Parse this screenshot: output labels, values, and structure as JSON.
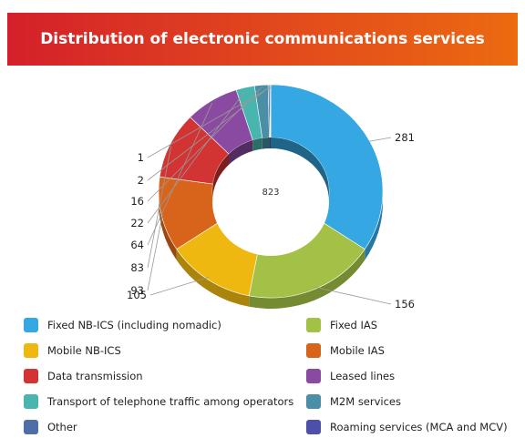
{
  "header": {
    "title": "Distribution of electronic communications services"
  },
  "chart_data": {
    "type": "pie",
    "variant": "donut-3d",
    "title": "Distribution of electronic communications services",
    "center_label": "823",
    "slices": [
      {
        "name": "Fixed NB-ICS (including nomadic)",
        "value": 281,
        "color": "#35a7e2"
      },
      {
        "name": "Fixed IAS",
        "value": 156,
        "color": "#a3c146"
      },
      {
        "name": "Mobile NB-ICS",
        "value": 105,
        "color": "#eeb811"
      },
      {
        "name": "Mobile IAS",
        "value": 93,
        "color": "#d8641b"
      },
      {
        "name": "Data transmission",
        "value": 83,
        "color": "#d23434"
      },
      {
        "name": "Leased lines",
        "value": 64,
        "color": "#8b4aa1"
      },
      {
        "name": "Transport of telephone traffic among operators",
        "value": 22,
        "color": "#48b6ae"
      },
      {
        "name": "M2M services",
        "value": 16,
        "color": "#4a8fa5"
      },
      {
        "name": "Other",
        "value": 2,
        "color": "#4d6ea6"
      },
      {
        "name": "Roaming services (MCA and MCV)",
        "value": 1,
        "color": "#4e4fa8"
      }
    ],
    "legend_placement": "bottom"
  }
}
